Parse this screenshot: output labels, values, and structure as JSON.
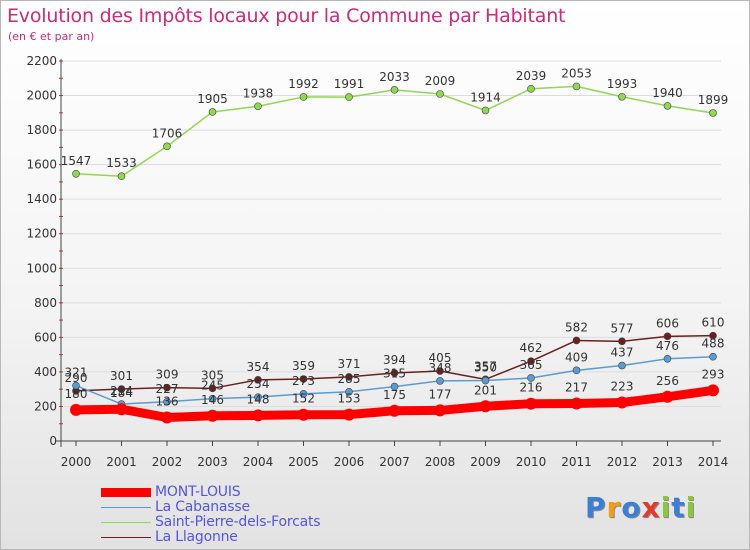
{
  "title": "Evolution des Impôts locaux pour la Commune par Habitant",
  "subtitle": "(en € et par an)",
  "chart_data": {
    "type": "line",
    "title": "Evolution des Impôts locaux pour la Commune par Habitant",
    "subtitle": "(en € et par an)",
    "xlabel": "",
    "ylabel": "",
    "ylim": [
      0,
      2200
    ],
    "yticks": [
      0,
      200,
      400,
      600,
      800,
      1000,
      1200,
      1400,
      1600,
      1800,
      2000,
      2200
    ],
    "categories": [
      "2000",
      "2001",
      "2002",
      "2003",
      "2004",
      "2005",
      "2006",
      "2007",
      "2008",
      "2009",
      "2010",
      "2011",
      "2012",
      "2013",
      "2014"
    ],
    "series": [
      {
        "name": "MONT-LOUIS",
        "color": "#ff0000",
        "values": [
          180,
          184,
          136,
          146,
          148,
          152,
          153,
          175,
          177,
          201,
          216,
          217,
          223,
          256,
          293
        ]
      },
      {
        "name": "La Cabanasse",
        "color": "#5b9bd5",
        "values": [
          321,
          214,
          227,
          245,
          254,
          273,
          285,
          315,
          348,
          350,
          365,
          409,
          437,
          476,
          488
        ]
      },
      {
        "name": "Saint-Pierre-dels-Forcats",
        "color": "#8fd94f",
        "values": [
          1547,
          1533,
          1706,
          1905,
          1938,
          1992,
          1991,
          2033,
          2009,
          1914,
          2039,
          2053,
          1993,
          1940,
          1899
        ]
      },
      {
        "name": "La Llagonne",
        "color": "#6b1f1f",
        "values": [
          290,
          301,
          309,
          305,
          354,
          359,
          371,
          394,
          405,
          357,
          462,
          582,
          577,
          606,
          610
        ]
      }
    ]
  },
  "legend": {
    "items": [
      {
        "label": "MONT-LOUIS"
      },
      {
        "label": "La Cabanasse"
      },
      {
        "label": "Saint-Pierre-dels-Forcats"
      },
      {
        "label": "La Llagonne"
      }
    ]
  },
  "logo": {
    "letters": [
      "P",
      "r",
      "o",
      "x",
      "i",
      "t",
      "i"
    ]
  }
}
